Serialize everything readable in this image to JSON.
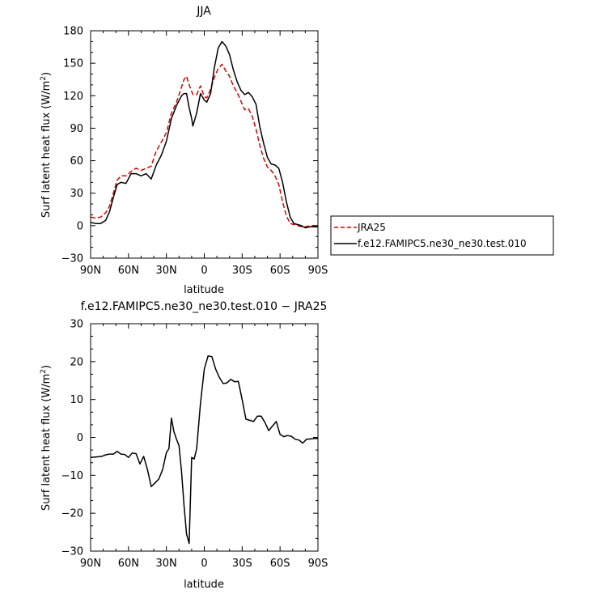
{
  "chart_data": [
    {
      "type": "line",
      "title": "JJA",
      "xlabel": "latitude",
      "ylabel": "Surf latent heat flux (W/m²)",
      "xlim": [
        90,
        -90
      ],
      "ylim": [
        -30,
        180
      ],
      "xtick_labels": [
        "90N",
        "60N",
        "30N",
        "0",
        "30S",
        "60S",
        "90S"
      ],
      "yticks": [
        -30,
        0,
        30,
        60,
        90,
        120,
        150,
        180
      ],
      "ytick_labels": [
        "−30",
        "0",
        "30",
        "60",
        "90",
        "120",
        "150",
        "180"
      ],
      "legend_position": "right",
      "series": [
        {
          "name": "JRA25",
          "color": "#dd0000",
          "style": "dashed",
          "x": [
            90,
            86,
            82,
            78,
            75,
            72,
            69,
            66,
            62,
            58,
            54,
            50,
            46,
            42,
            38,
            34,
            30,
            26,
            22,
            18,
            16,
            14,
            12,
            9,
            6,
            3,
            0,
            -2,
            -5,
            -8,
            -11,
            -14,
            -17,
            -20,
            -23,
            -26,
            -29,
            -32,
            -35,
            -38,
            -41,
            -44,
            -47,
            -50,
            -53,
            -56,
            -59,
            -62,
            -65,
            -68,
            -71,
            -74,
            -77,
            -80,
            -84,
            -87,
            -90
          ],
          "y": [
            8,
            7,
            8,
            12,
            18,
            30,
            42,
            46,
            46,
            50,
            53,
            51,
            53,
            55,
            69,
            77,
            86,
            104,
            114,
            128,
            135,
            138,
            130,
            121,
            121,
            129,
            119,
            118,
            126,
            137,
            145,
            149,
            143,
            138,
            129,
            123,
            115,
            107,
            108,
            101,
            89,
            74,
            62,
            54,
            51,
            46,
            38,
            22,
            9,
            2,
            1,
            0,
            -1,
            -1,
            0,
            0,
            -1
          ]
        },
        {
          "name": "f.e12.FAMIPC5.ne30_ne30.test.010",
          "color": "#000000",
          "style": "solid",
          "x": [
            90,
            86,
            82,
            78,
            75,
            72,
            69,
            66,
            62,
            58,
            54,
            50,
            46,
            42,
            38,
            34,
            30,
            26,
            22,
            18,
            16,
            14,
            12,
            10,
            9,
            6,
            3,
            0,
            -2,
            -5,
            -8,
            -11,
            -14,
            -17,
            -20,
            -23,
            -26,
            -29,
            -32,
            -35,
            -38,
            -41,
            -44,
            -47,
            -50,
            -53,
            -56,
            -59,
            -62,
            -65,
            -68,
            -71,
            -74,
            -77,
            -80,
            -84,
            -87,
            -90
          ],
          "y": [
            3,
            2,
            2,
            5,
            13,
            26,
            38,
            40,
            39,
            48,
            48,
            46,
            48,
            43,
            56,
            65,
            78,
            99,
            111,
            120,
            122,
            122,
            109,
            99,
            92,
            104,
            122,
            116,
            114,
            122,
            146,
            164,
            170,
            166,
            158,
            144,
            133,
            125,
            121,
            123,
            119,
            112,
            91,
            76,
            63,
            57,
            56,
            53,
            40,
            22,
            8,
            2,
            1,
            0,
            -2,
            -1,
            -1,
            -1
          ]
        }
      ]
    },
    {
      "type": "line",
      "title": "f.e12.FAMIPC5.ne30_ne30.test.010 − JRA25",
      "xlabel": "latitude",
      "ylabel": "Surf latent heat flux (W/m²)",
      "xlim": [
        90,
        -90
      ],
      "ylim": [
        -30,
        30
      ],
      "xtick_labels": [
        "90N",
        "60N",
        "30N",
        "0",
        "30S",
        "60S",
        "90S"
      ],
      "yticks": [
        -30,
        -20,
        -10,
        0,
        10,
        20,
        30
      ],
      "ytick_labels": [
        "−30",
        "−20",
        "−10",
        "0",
        "10",
        "20",
        "30"
      ],
      "series": [
        {
          "color": "#000000",
          "style": "solid",
          "x": [
            90,
            87,
            84,
            81,
            78,
            75,
            72,
            69,
            66,
            63,
            60,
            57,
            54,
            51,
            48,
            45,
            42,
            39,
            36,
            33,
            30,
            28,
            26,
            24,
            22,
            20,
            18,
            16,
            14,
            12,
            10,
            8,
            6,
            3,
            0,
            -3,
            -6,
            -9,
            -12,
            -15,
            -18,
            -21,
            -24,
            -27,
            -30,
            -33,
            -36,
            -39,
            -42,
            -45,
            -48,
            -51,
            -54,
            -57,
            -60,
            -63,
            -66,
            -69,
            -72,
            -75,
            -78,
            -81,
            -84,
            -87,
            -90
          ],
          "y": [
            -5.3,
            -5.2,
            -5.1,
            -5.0,
            -4.6,
            -4.4,
            -4.4,
            -3.7,
            -4.4,
            -4.5,
            -5.3,
            -4.1,
            -4.3,
            -7.0,
            -5.0,
            -8.5,
            -13.0,
            -12.0,
            -11.0,
            -8.5,
            -4.0,
            -3.0,
            5.1,
            1.5,
            -0.5,
            -2.2,
            -9.0,
            -18.0,
            -25.5,
            -28.0,
            -5.3,
            -5.7,
            -3.0,
            9.0,
            18.0,
            21.5,
            21.3,
            18.0,
            15.8,
            14.2,
            14.4,
            15.3,
            14.7,
            14.8,
            10.0,
            4.8,
            4.5,
            4.2,
            5.6,
            5.6,
            4.0,
            1.8,
            3.0,
            4.2,
            0.8,
            0.2,
            0.5,
            0.3,
            -0.5,
            -0.7,
            -1.5,
            -0.5,
            -0.4,
            -0.3,
            -0.3
          ]
        }
      ]
    }
  ]
}
